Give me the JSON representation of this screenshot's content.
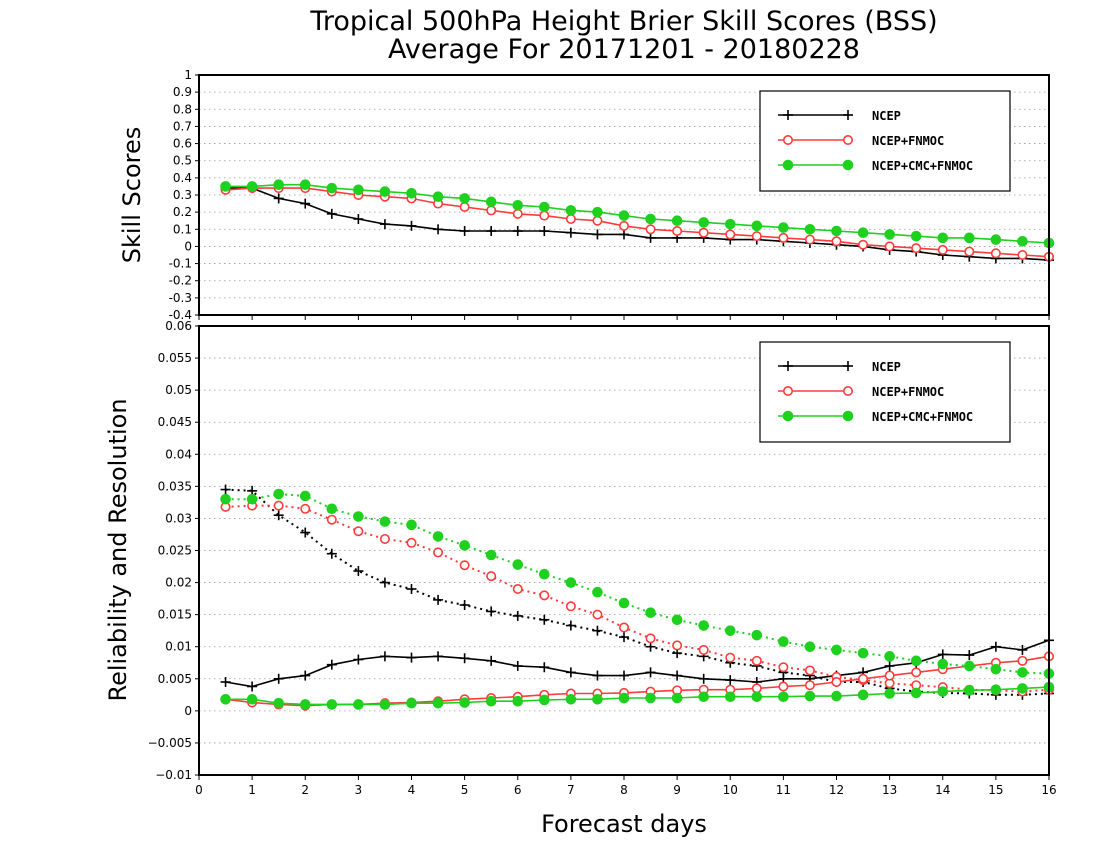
{
  "chart_data": [
    {
      "type": "line",
      "title": "Tropical 500hPa Height Brier Skill Scores (BSS)",
      "subtitle": "Average For 20171201 - 20180228",
      "ylabel": "Skill Scores",
      "xlabel": "",
      "xlim": [
        0,
        16
      ],
      "ylim": [
        -0.4,
        1
      ],
      "yticks": [
        "1",
        "0.9",
        "0.8",
        "0.7",
        "0.6",
        "0.5",
        "0.4",
        "0.3",
        "0.2",
        "0.1",
        "0",
        "-0.1",
        "-0.2",
        "-0.3",
        "-0.4"
      ],
      "grid": true,
      "legend": "top-right",
      "x": [
        0.5,
        1,
        1.5,
        2,
        2.5,
        3,
        3.5,
        4,
        4.5,
        5,
        5.5,
        6,
        6.5,
        7,
        7.5,
        8,
        8.5,
        9,
        9.5,
        10,
        10.5,
        11,
        11.5,
        12,
        12.5,
        13,
        13.5,
        14,
        14.5,
        15,
        15.5,
        16
      ],
      "series": [
        {
          "name": "NCEP",
          "color": "#000000",
          "marker": "plus",
          "style": "solid",
          "values": [
            0.34,
            0.34,
            0.28,
            0.25,
            0.19,
            0.16,
            0.13,
            0.12,
            0.1,
            0.09,
            0.09,
            0.09,
            0.09,
            0.08,
            0.07,
            0.07,
            0.05,
            0.05,
            0.05,
            0.04,
            0.04,
            0.03,
            0.02,
            0.01,
            0.0,
            -0.02,
            -0.03,
            -0.05,
            -0.06,
            -0.07,
            -0.07,
            -0.08
          ]
        },
        {
          "name": "NCEP+FNMOC",
          "color": "#ff3b3b",
          "marker": "open-circle",
          "style": "solid",
          "values": [
            0.33,
            0.34,
            0.34,
            0.34,
            0.32,
            0.3,
            0.29,
            0.28,
            0.25,
            0.23,
            0.21,
            0.19,
            0.18,
            0.16,
            0.15,
            0.12,
            0.1,
            0.09,
            0.08,
            0.07,
            0.06,
            0.05,
            0.04,
            0.03,
            0.01,
            0.0,
            -0.01,
            -0.02,
            -0.03,
            -0.04,
            -0.05,
            -0.06
          ]
        },
        {
          "name": "NCEP+CMC+FNMOC",
          "color": "#1fd01f",
          "marker": "filled-circle",
          "style": "solid",
          "values": [
            0.35,
            0.35,
            0.36,
            0.36,
            0.34,
            0.33,
            0.32,
            0.31,
            0.29,
            0.28,
            0.26,
            0.24,
            0.23,
            0.21,
            0.2,
            0.18,
            0.16,
            0.15,
            0.14,
            0.13,
            0.12,
            0.11,
            0.1,
            0.09,
            0.08,
            0.07,
            0.06,
            0.05,
            0.05,
            0.04,
            0.03,
            0.02
          ]
        }
      ]
    },
    {
      "type": "line",
      "title": "",
      "ylabel": "Reliability and Resolution",
      "xlabel": "Forecast days",
      "xlim": [
        0,
        16
      ],
      "ylim": [
        -0.01,
        0.06
      ],
      "xticks": [
        "0",
        "1",
        "2",
        "3",
        "4",
        "5",
        "6",
        "7",
        "8",
        "9",
        "10",
        "11",
        "12",
        "13",
        "14",
        "15",
        "16"
      ],
      "yticks": [
        "0.06",
        "0.055",
        "0.05",
        "0.045",
        "0.04",
        "0.035",
        "0.03",
        "0.025",
        "0.02",
        "0.015",
        "0.01",
        "0.005",
        "0",
        "−0.005",
        "−0.01"
      ],
      "grid": true,
      "legend": "top-right",
      "legend_entries": [
        "NCEP",
        "NCEP+FNMOC",
        "NCEP+CMC+FNMOC"
      ],
      "x": [
        0.5,
        1,
        1.5,
        2,
        2.5,
        3,
        3.5,
        4,
        4.5,
        5,
        5.5,
        6,
        6.5,
        7,
        7.5,
        8,
        8.5,
        9,
        9.5,
        10,
        10.5,
        11,
        11.5,
        12,
        12.5,
        13,
        13.5,
        14,
        14.5,
        15,
        15.5,
        16
      ],
      "series": [
        {
          "color": "#000000",
          "marker": "plus",
          "style": "dotted",
          "values": [
            0.0345,
            0.0343,
            0.0305,
            0.0278,
            0.0245,
            0.0218,
            0.02,
            0.019,
            0.0173,
            0.0165,
            0.0155,
            0.0148,
            0.0142,
            0.0133,
            0.0125,
            0.0115,
            0.01,
            0.009,
            0.0085,
            0.0075,
            0.007,
            0.006,
            0.0055,
            0.0045,
            0.0045,
            0.0035,
            0.003,
            0.0028,
            0.0027,
            0.0025,
            0.0025,
            0.0027
          ]
        },
        {
          "color": "#000000",
          "marker": "plus",
          "style": "solid",
          "values": [
            0.0045,
            0.0038,
            0.005,
            0.0055,
            0.0072,
            0.008,
            0.0085,
            0.0083,
            0.0085,
            0.0082,
            0.0078,
            0.007,
            0.0068,
            0.006,
            0.0055,
            0.0055,
            0.006,
            0.0055,
            0.005,
            0.0048,
            0.0045,
            0.005,
            0.005,
            0.0055,
            0.006,
            0.007,
            0.0075,
            0.0088,
            0.0087,
            0.01,
            0.0095,
            0.011
          ]
        },
        {
          "color": "#ff3b3b",
          "marker": "open-circle",
          "style": "dotted",
          "values": [
            0.0318,
            0.032,
            0.032,
            0.0315,
            0.0298,
            0.028,
            0.0268,
            0.0262,
            0.0247,
            0.0227,
            0.021,
            0.019,
            0.018,
            0.0163,
            0.015,
            0.013,
            0.0113,
            0.0102,
            0.0095,
            0.0083,
            0.0078,
            0.0068,
            0.0063,
            0.0053,
            0.0048,
            0.0043,
            0.004,
            0.0037,
            0.0033,
            0.0032,
            0.003,
            0.0033
          ]
        },
        {
          "color": "#ff3b3b",
          "marker": "open-circle",
          "style": "solid",
          "values": [
            0.0018,
            0.0013,
            0.001,
            0.0008,
            0.001,
            0.001,
            0.0012,
            0.0013,
            0.0015,
            0.0018,
            0.002,
            0.0022,
            0.0025,
            0.0027,
            0.0027,
            0.0028,
            0.003,
            0.0032,
            0.0033,
            0.0033,
            0.0035,
            0.0038,
            0.004,
            0.0045,
            0.005,
            0.0055,
            0.006,
            0.0065,
            0.007,
            0.0075,
            0.0078,
            0.0085
          ]
        },
        {
          "color": "#1fd01f",
          "marker": "filled-circle",
          "style": "dotted",
          "values": [
            0.033,
            0.033,
            0.0338,
            0.0335,
            0.0315,
            0.0303,
            0.0295,
            0.029,
            0.0272,
            0.0258,
            0.0243,
            0.0228,
            0.0213,
            0.02,
            0.0185,
            0.0168,
            0.0153,
            0.0142,
            0.0133,
            0.0125,
            0.0118,
            0.0108,
            0.01,
            0.0095,
            0.009,
            0.0085,
            0.0078,
            0.0073,
            0.007,
            0.0065,
            0.006,
            0.0058
          ]
        },
        {
          "color": "#1fd01f",
          "marker": "filled-circle",
          "style": "solid",
          "values": [
            0.0018,
            0.0018,
            0.0012,
            0.001,
            0.001,
            0.001,
            0.001,
            0.0012,
            0.0012,
            0.0013,
            0.0015,
            0.0015,
            0.0017,
            0.0018,
            0.0018,
            0.002,
            0.002,
            0.002,
            0.0022,
            0.0022,
            0.0022,
            0.0022,
            0.0023,
            0.0023,
            0.0025,
            0.0027,
            0.0028,
            0.003,
            0.0032,
            0.0033,
            0.0035,
            0.0037
          ]
        }
      ]
    }
  ]
}
